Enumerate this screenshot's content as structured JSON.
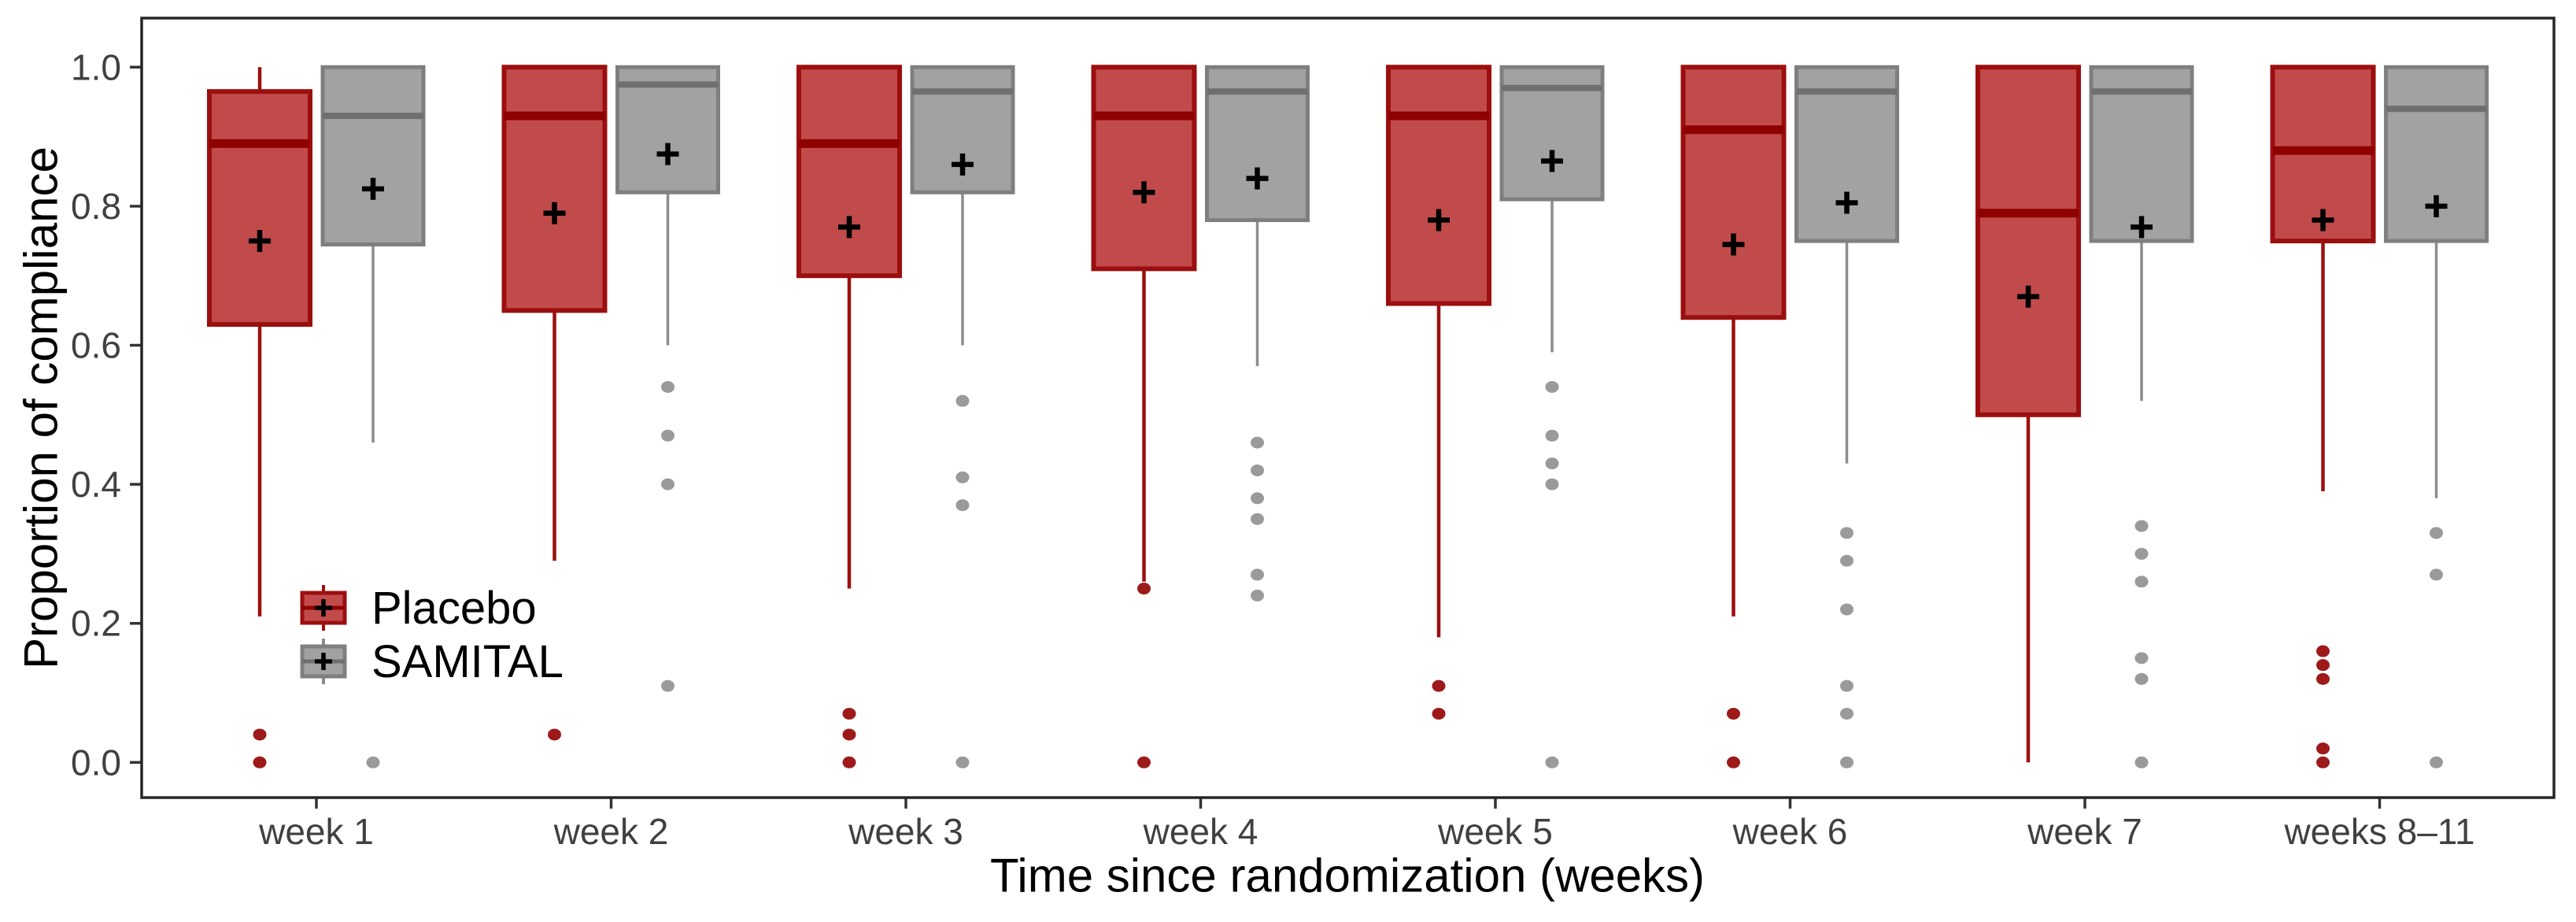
{
  "figure": {
    "background_color": "#ffffff",
    "panel_border_color": "#262626",
    "tick_color": "#333333",
    "tick_label_color": "#404040"
  },
  "chart_data": {
    "type": "boxplot",
    "title": "",
    "xlabel": "Time since randomization (weeks)",
    "ylabel": "Proportion of compliance",
    "ylim": [
      0,
      1
    ],
    "yticks": [
      0.0,
      0.2,
      0.4,
      0.6,
      0.8,
      1.0
    ],
    "ytick_labels": [
      "0.0",
      "0.2",
      "0.4",
      "0.6",
      "0.8",
      "1.0"
    ],
    "grid": false,
    "legend_position": "inside-bottom-left",
    "mean_marker": {
      "symbol": "+",
      "color": "#000000"
    },
    "categories": [
      "week 1",
      "week 2",
      "week 3",
      "week 4",
      "week 5",
      "week 6",
      "week 7",
      "weeks 8–11"
    ],
    "series": [
      {
        "name": "Placebo",
        "fill": "#c14b4b",
        "stroke": "#9c0f0f",
        "median_color": "#8f0000",
        "whisker_color": "#9c0f0f",
        "point_color": "#9e1a1a",
        "values": [
          {
            "low": 0.21,
            "q1": 0.63,
            "median": 0.89,
            "q3": 0.965,
            "high": 1.0,
            "mean": 0.75,
            "outliers": [
              0.04,
              0.0
            ]
          },
          {
            "low": 0.29,
            "q1": 0.65,
            "median": 0.93,
            "q3": 1.0,
            "high": 1.0,
            "mean": 0.79,
            "outliers": [
              0.04
            ]
          },
          {
            "low": 0.25,
            "q1": 0.7,
            "median": 0.89,
            "q3": 1.0,
            "high": 1.0,
            "mean": 0.77,
            "outliers": [
              0.07,
              0.04,
              0.0
            ]
          },
          {
            "low": 0.26,
            "q1": 0.71,
            "median": 0.93,
            "q3": 1.0,
            "high": 1.0,
            "mean": 0.82,
            "outliers": [
              0.25,
              0.0
            ]
          },
          {
            "low": 0.18,
            "q1": 0.66,
            "median": 0.93,
            "q3": 1.0,
            "high": 1.0,
            "mean": 0.78,
            "outliers": [
              0.11,
              0.07
            ]
          },
          {
            "low": 0.21,
            "q1": 0.64,
            "median": 0.91,
            "q3": 1.0,
            "high": 1.0,
            "mean": 0.745,
            "outliers": [
              0.07,
              0.0
            ]
          },
          {
            "low": 0.0,
            "q1": 0.5,
            "median": 0.79,
            "q3": 1.0,
            "high": 1.0,
            "mean": 0.67,
            "outliers": []
          },
          {
            "low": 0.39,
            "q1": 0.75,
            "median": 0.88,
            "q3": 1.0,
            "high": 1.0,
            "mean": 0.78,
            "outliers": [
              0.16,
              0.14,
              0.12,
              0.02,
              0.0
            ]
          }
        ]
      },
      {
        "name": "SAMITAL",
        "fill": "#a2a2a2",
        "stroke": "#7f7f7f",
        "median_color": "#6f6f6f",
        "whisker_color": "#8c8c8c",
        "point_color": "#9a9a9a",
        "values": [
          {
            "low": 0.46,
            "q1": 0.745,
            "median": 0.93,
            "q3": 1.0,
            "high": 1.0,
            "mean": 0.825,
            "outliers": [
              0.0
            ]
          },
          {
            "low": 0.6,
            "q1": 0.82,
            "median": 0.975,
            "q3": 1.0,
            "high": 1.0,
            "mean": 0.875,
            "outliers": [
              0.54,
              0.47,
              0.4,
              0.11
            ]
          },
          {
            "low": 0.6,
            "q1": 0.82,
            "median": 0.965,
            "q3": 1.0,
            "high": 1.0,
            "mean": 0.86,
            "outliers": [
              0.52,
              0.41,
              0.37,
              0.0
            ]
          },
          {
            "low": 0.57,
            "q1": 0.78,
            "median": 0.965,
            "q3": 1.0,
            "high": 1.0,
            "mean": 0.84,
            "outliers": [
              0.46,
              0.42,
              0.38,
              0.35,
              0.27,
              0.24
            ]
          },
          {
            "low": 0.59,
            "q1": 0.81,
            "median": 0.97,
            "q3": 1.0,
            "high": 1.0,
            "mean": 0.865,
            "outliers": [
              0.54,
              0.47,
              0.43,
              0.4,
              0.0
            ]
          },
          {
            "low": 0.43,
            "q1": 0.75,
            "median": 0.965,
            "q3": 1.0,
            "high": 1.0,
            "mean": 0.805,
            "outliers": [
              0.33,
              0.29,
              0.22,
              0.11,
              0.07,
              0.0
            ]
          },
          {
            "low": 0.52,
            "q1": 0.75,
            "median": 0.965,
            "q3": 1.0,
            "high": 1.0,
            "mean": 0.77,
            "outliers": [
              0.34,
              0.3,
              0.26,
              0.15,
              0.12,
              0.0
            ]
          },
          {
            "low": 0.38,
            "q1": 0.75,
            "median": 0.94,
            "q3": 1.0,
            "high": 1.0,
            "mean": 0.8,
            "outliers": [
              0.33,
              0.27,
              0.0
            ]
          }
        ]
      }
    ]
  }
}
